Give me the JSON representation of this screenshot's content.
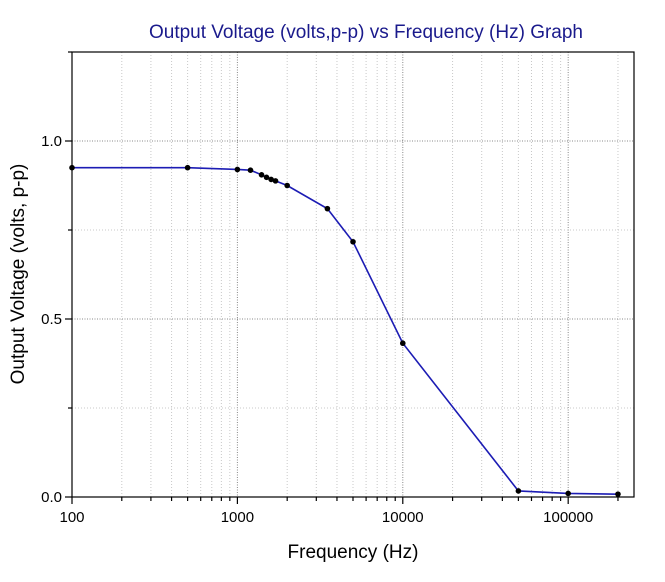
{
  "chart_data": {
    "type": "line",
    "title": "Output Voltage (volts,p-p) vs Frequency (Hz) Graph",
    "xlabel": "Frequency (Hz)",
    "ylabel": "Output Voltage (volts, p-p)",
    "xscale": "log",
    "xlim": [
      100,
      250000
    ],
    "ylim": [
      0,
      1.25
    ],
    "x_ticks": [
      {
        "value": 100,
        "label": "100"
      },
      {
        "value": 1000,
        "label": "1000"
      },
      {
        "value": 10000,
        "label": "10000"
      },
      {
        "value": 100000,
        "label": "100000"
      }
    ],
    "y_ticks": [
      {
        "value": 0,
        "label": "0.0"
      },
      {
        "value": 0.5,
        "label": "0.5"
      },
      {
        "value": 1.0,
        "label": "1.0"
      }
    ],
    "grid": true,
    "series": [
      {
        "color": "#1c1cb4",
        "marker_color": "#000000",
        "x": [
          100,
          500,
          1000,
          1200,
          1400,
          1500,
          1600,
          1700,
          2000,
          3500,
          5000,
          10000,
          50000,
          100000,
          200000
        ],
        "y": [
          0.925,
          0.925,
          0.92,
          0.918,
          0.905,
          0.898,
          0.892,
          0.888,
          0.875,
          0.81,
          0.717,
          0.432,
          0.017,
          0.01,
          0.008
        ]
      }
    ]
  }
}
